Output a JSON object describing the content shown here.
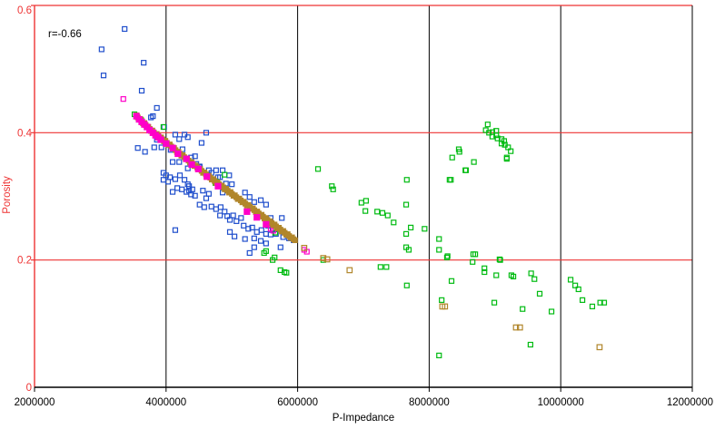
{
  "chart_data": {
    "type": "scatter",
    "title": "",
    "annotation": "r=-0.66",
    "xlabel": "P-Impedance",
    "ylabel": "Porosity",
    "xlim": [
      2000000,
      12000000
    ],
    "ylim": [
      0,
      0.6
    ],
    "grid": true,
    "legend_position": "none",
    "x_ticks": [
      2000000,
      4000000,
      6000000,
      8000000,
      10000000,
      12000000
    ],
    "x_tick_labels": [
      "2000000",
      "4000000",
      "6000000",
      "8000000",
      "10000000",
      "12000000"
    ],
    "y_ticks": [
      0,
      0.2,
      0.4,
      0.6
    ],
    "y_tick_labels": [
      "0",
      "0.2",
      "0.4",
      "0.6"
    ],
    "colors": {
      "x_grid": "#000000",
      "y_grid": "#ee3333",
      "y_axis_text": "#ee3333",
      "x_axis_text": "#000000",
      "annotation_text": "#000000",
      "blue_series": "#1f4ecc",
      "green_series": "#00bb11",
      "magenta_series": "#ff00c8",
      "trend_series": "#b1862b"
    },
    "series": [
      {
        "name": "blue-points",
        "marker": "open-square",
        "color": "#1f4ecc",
        "points": [
          [
            3370000,
            0.563
          ],
          [
            3020000,
            0.531
          ],
          [
            3660000,
            0.51
          ],
          [
            3050000,
            0.49
          ],
          [
            3630000,
            0.466
          ],
          [
            3860000,
            0.439
          ],
          [
            3800000,
            0.426
          ],
          [
            3770000,
            0.424
          ],
          [
            3970000,
            0.409
          ],
          [
            4140000,
            0.397
          ],
          [
            4280000,
            0.397
          ],
          [
            3860000,
            0.389
          ],
          [
            3990000,
            0.384
          ],
          [
            4200000,
            0.39
          ],
          [
            4330000,
            0.393
          ],
          [
            4540000,
            0.384
          ],
          [
            4610000,
            0.4
          ],
          [
            3570000,
            0.376
          ],
          [
            3680000,
            0.37
          ],
          [
            3820000,
            0.377
          ],
          [
            3930000,
            0.377
          ],
          [
            4070000,
            0.373
          ],
          [
            4250000,
            0.374
          ],
          [
            4380000,
            0.361
          ],
          [
            4440000,
            0.363
          ],
          [
            4460000,
            0.351
          ],
          [
            4510000,
            0.346
          ],
          [
            4650000,
            0.341
          ],
          [
            4690000,
            0.337
          ],
          [
            4760000,
            0.341
          ],
          [
            4790000,
            0.33
          ],
          [
            4100000,
            0.354
          ],
          [
            4200000,
            0.354
          ],
          [
            4510000,
            0.347
          ],
          [
            4860000,
            0.341
          ],
          [
            4820000,
            0.33
          ],
          [
            4960000,
            0.333
          ],
          [
            3960000,
            0.337
          ],
          [
            4000000,
            0.333
          ],
          [
            4060000,
            0.33
          ],
          [
            3960000,
            0.326
          ],
          [
            4030000,
            0.323
          ],
          [
            4170000,
            0.313
          ],
          [
            4240000,
            0.311
          ],
          [
            4100000,
            0.307
          ],
          [
            4350000,
            0.316
          ],
          [
            4310000,
            0.307
          ],
          [
            4380000,
            0.303
          ],
          [
            4440000,
            0.301
          ],
          [
            4560000,
            0.309
          ],
          [
            4650000,
            0.304
          ],
          [
            4610000,
            0.297
          ],
          [
            4510000,
            0.287
          ],
          [
            4580000,
            0.283
          ],
          [
            4690000,
            0.284
          ],
          [
            4760000,
            0.28
          ],
          [
            4830000,
            0.283
          ],
          [
            4890000,
            0.276
          ],
          [
            4820000,
            0.27
          ],
          [
            4930000,
            0.269
          ],
          [
            5020000,
            0.27
          ],
          [
            4970000,
            0.263
          ],
          [
            5070000,
            0.261
          ],
          [
            5140000,
            0.266
          ],
          [
            5200000,
            0.306
          ],
          [
            5270000,
            0.299
          ],
          [
            5340000,
            0.291
          ],
          [
            5440000,
            0.294
          ],
          [
            5520000,
            0.287
          ],
          [
            5180000,
            0.254
          ],
          [
            5250000,
            0.249
          ],
          [
            5310000,
            0.251
          ],
          [
            5380000,
            0.244
          ],
          [
            5450000,
            0.247
          ],
          [
            5520000,
            0.241
          ],
          [
            5340000,
            0.234
          ],
          [
            5440000,
            0.23
          ],
          [
            5520000,
            0.226
          ],
          [
            4140000,
            0.247
          ],
          [
            4970000,
            0.244
          ],
          [
            5040000,
            0.237
          ],
          [
            5200000,
            0.233
          ],
          [
            5340000,
            0.22
          ],
          [
            5590000,
            0.266
          ],
          [
            5760000,
            0.266
          ],
          [
            5550000,
            0.254
          ],
          [
            5620000,
            0.249
          ],
          [
            5670000,
            0.241
          ],
          [
            5590000,
            0.24
          ],
          [
            5780000,
            0.236
          ],
          [
            5870000,
            0.234
          ],
          [
            5940000,
            0.231
          ],
          [
            5740000,
            0.22
          ],
          [
            4860000,
            0.306
          ],
          [
            4910000,
            0.32
          ],
          [
            5000000,
            0.319
          ],
          [
            4330000,
            0.344
          ],
          [
            4280000,
            0.326
          ],
          [
            4210000,
            0.333
          ],
          [
            4140000,
            0.327
          ],
          [
            4330000,
            0.319
          ],
          [
            4400000,
            0.311
          ],
          [
            4350000,
            0.309
          ],
          [
            5270000,
            0.211
          ]
        ]
      },
      {
        "name": "green-points",
        "marker": "open-square",
        "color": "#00bb11",
        "points": [
          [
            3520000,
            0.429
          ],
          [
            3620000,
            0.42
          ],
          [
            3960000,
            0.409
          ],
          [
            4750000,
            0.321
          ],
          [
            4890000,
            0.334
          ],
          [
            4760000,
            0.323
          ],
          [
            5660000,
            0.243
          ],
          [
            5490000,
            0.211
          ],
          [
            5520000,
            0.214
          ],
          [
            5650000,
            0.204
          ],
          [
            5740000,
            0.184
          ],
          [
            5800000,
            0.181
          ],
          [
            5830000,
            0.18
          ],
          [
            5620000,
            0.2
          ],
          [
            6310000,
            0.343
          ],
          [
            6520000,
            0.316
          ],
          [
            6540000,
            0.311
          ],
          [
            6970000,
            0.29
          ],
          [
            7040000,
            0.293
          ],
          [
            7030000,
            0.277
          ],
          [
            7210000,
            0.276
          ],
          [
            7290000,
            0.274
          ],
          [
            7370000,
            0.27
          ],
          [
            7460000,
            0.259
          ],
          [
            7660000,
            0.326
          ],
          [
            7650000,
            0.287
          ],
          [
            7720000,
            0.251
          ],
          [
            7930000,
            0.249
          ],
          [
            7650000,
            0.241
          ],
          [
            7650000,
            0.22
          ],
          [
            8150000,
            0.233
          ],
          [
            8150000,
            0.216
          ],
          [
            8280000,
            0.206
          ],
          [
            8330000,
            0.326
          ],
          [
            8460000,
            0.37
          ],
          [
            8550000,
            0.341
          ],
          [
            8680000,
            0.354
          ],
          [
            9180000,
            0.359
          ],
          [
            8670000,
            0.209
          ],
          [
            8840000,
            0.187
          ],
          [
            9070000,
            0.201
          ],
          [
            9250000,
            0.176
          ],
          [
            7260000,
            0.189
          ],
          [
            7350000,
            0.189
          ],
          [
            7660000,
            0.16
          ],
          [
            7690000,
            0.216
          ],
          [
            8270000,
            0.204
          ],
          [
            8700000,
            0.209
          ],
          [
            8660000,
            0.197
          ],
          [
            9080000,
            0.2
          ],
          [
            8840000,
            0.181
          ],
          [
            9020000,
            0.176
          ],
          [
            9280000,
            0.174
          ],
          [
            9550000,
            0.179
          ],
          [
            9600000,
            0.17
          ],
          [
            8340000,
            0.167
          ],
          [
            8190000,
            0.137
          ],
          [
            9680000,
            0.147
          ],
          [
            8990000,
            0.133
          ],
          [
            9420000,
            0.123
          ],
          [
            9860000,
            0.119
          ],
          [
            9540000,
            0.067
          ],
          [
            8150000,
            0.05
          ],
          [
            10150000,
            0.169
          ],
          [
            10220000,
            0.16
          ],
          [
            10270000,
            0.154
          ],
          [
            10330000,
            0.137
          ],
          [
            10480000,
            0.127
          ],
          [
            10600000,
            0.133
          ],
          [
            10660000,
            0.133
          ],
          [
            8890000,
            0.413
          ],
          [
            8860000,
            0.404
          ],
          [
            8910000,
            0.4
          ],
          [
            8960000,
            0.401
          ],
          [
            9020000,
            0.403
          ],
          [
            8960000,
            0.394
          ],
          [
            9020000,
            0.396
          ],
          [
            9040000,
            0.391
          ],
          [
            9100000,
            0.39
          ],
          [
            9140000,
            0.387
          ],
          [
            9100000,
            0.383
          ],
          [
            9150000,
            0.381
          ],
          [
            9200000,
            0.377
          ],
          [
            9240000,
            0.371
          ],
          [
            9180000,
            0.361
          ],
          [
            8450000,
            0.374
          ],
          [
            8350000,
            0.361
          ],
          [
            8560000,
            0.341
          ],
          [
            8310000,
            0.326
          ],
          [
            6390000,
            0.2
          ]
        ]
      },
      {
        "name": "magenta-scatter",
        "marker": "open-square",
        "color": "#ff00c8",
        "points": [
          [
            3350000,
            0.453
          ],
          [
            5590000,
            0.249
          ],
          [
            5630000,
            0.246
          ],
          [
            6100000,
            0.216
          ],
          [
            6140000,
            0.213
          ]
        ]
      },
      {
        "name": "trend-band",
        "marker": "filled-square",
        "color": "#b1862b",
        "render": "dense-band",
        "vertices": [
          [
            3550000,
            0.426
          ],
          [
            3770000,
            0.404
          ],
          [
            3990000,
            0.386
          ],
          [
            4210000,
            0.367
          ],
          [
            4430000,
            0.349
          ],
          [
            4650000,
            0.331
          ],
          [
            4870000,
            0.314
          ],
          [
            5090000,
            0.297
          ],
          [
            5320000,
            0.28
          ],
          [
            5540000,
            0.263
          ],
          [
            5760000,
            0.246
          ],
          [
            5960000,
            0.231
          ]
        ]
      },
      {
        "name": "trend-tail",
        "marker": "open-square",
        "color": "#b1862b",
        "points": [
          [
            6100000,
            0.219
          ],
          [
            6390000,
            0.203
          ],
          [
            6450000,
            0.201
          ],
          [
            6790000,
            0.184
          ],
          [
            8200000,
            0.127
          ],
          [
            8240000,
            0.127
          ],
          [
            9320000,
            0.094
          ],
          [
            9380000,
            0.094
          ],
          [
            10590000,
            0.063
          ]
        ]
      },
      {
        "name": "magenta-band",
        "marker": "filled-square",
        "color": "#ff00c8",
        "points": [
          [
            3550000,
            0.426
          ],
          [
            3590000,
            0.421
          ],
          [
            3630000,
            0.417
          ],
          [
            3670000,
            0.413
          ],
          [
            3710000,
            0.409
          ],
          [
            3750000,
            0.404
          ],
          [
            3800000,
            0.4
          ],
          [
            3840000,
            0.396
          ],
          [
            3880000,
            0.393
          ],
          [
            3920000,
            0.389
          ],
          [
            4000000,
            0.383
          ],
          [
            4100000,
            0.376
          ],
          [
            4180000,
            0.367
          ],
          [
            4310000,
            0.359
          ],
          [
            4390000,
            0.35
          ],
          [
            4490000,
            0.343
          ],
          [
            4620000,
            0.331
          ],
          [
            4790000,
            0.316
          ],
          [
            5230000,
            0.276
          ],
          [
            5380000,
            0.267
          ],
          [
            5520000,
            0.256
          ]
        ]
      }
    ]
  }
}
